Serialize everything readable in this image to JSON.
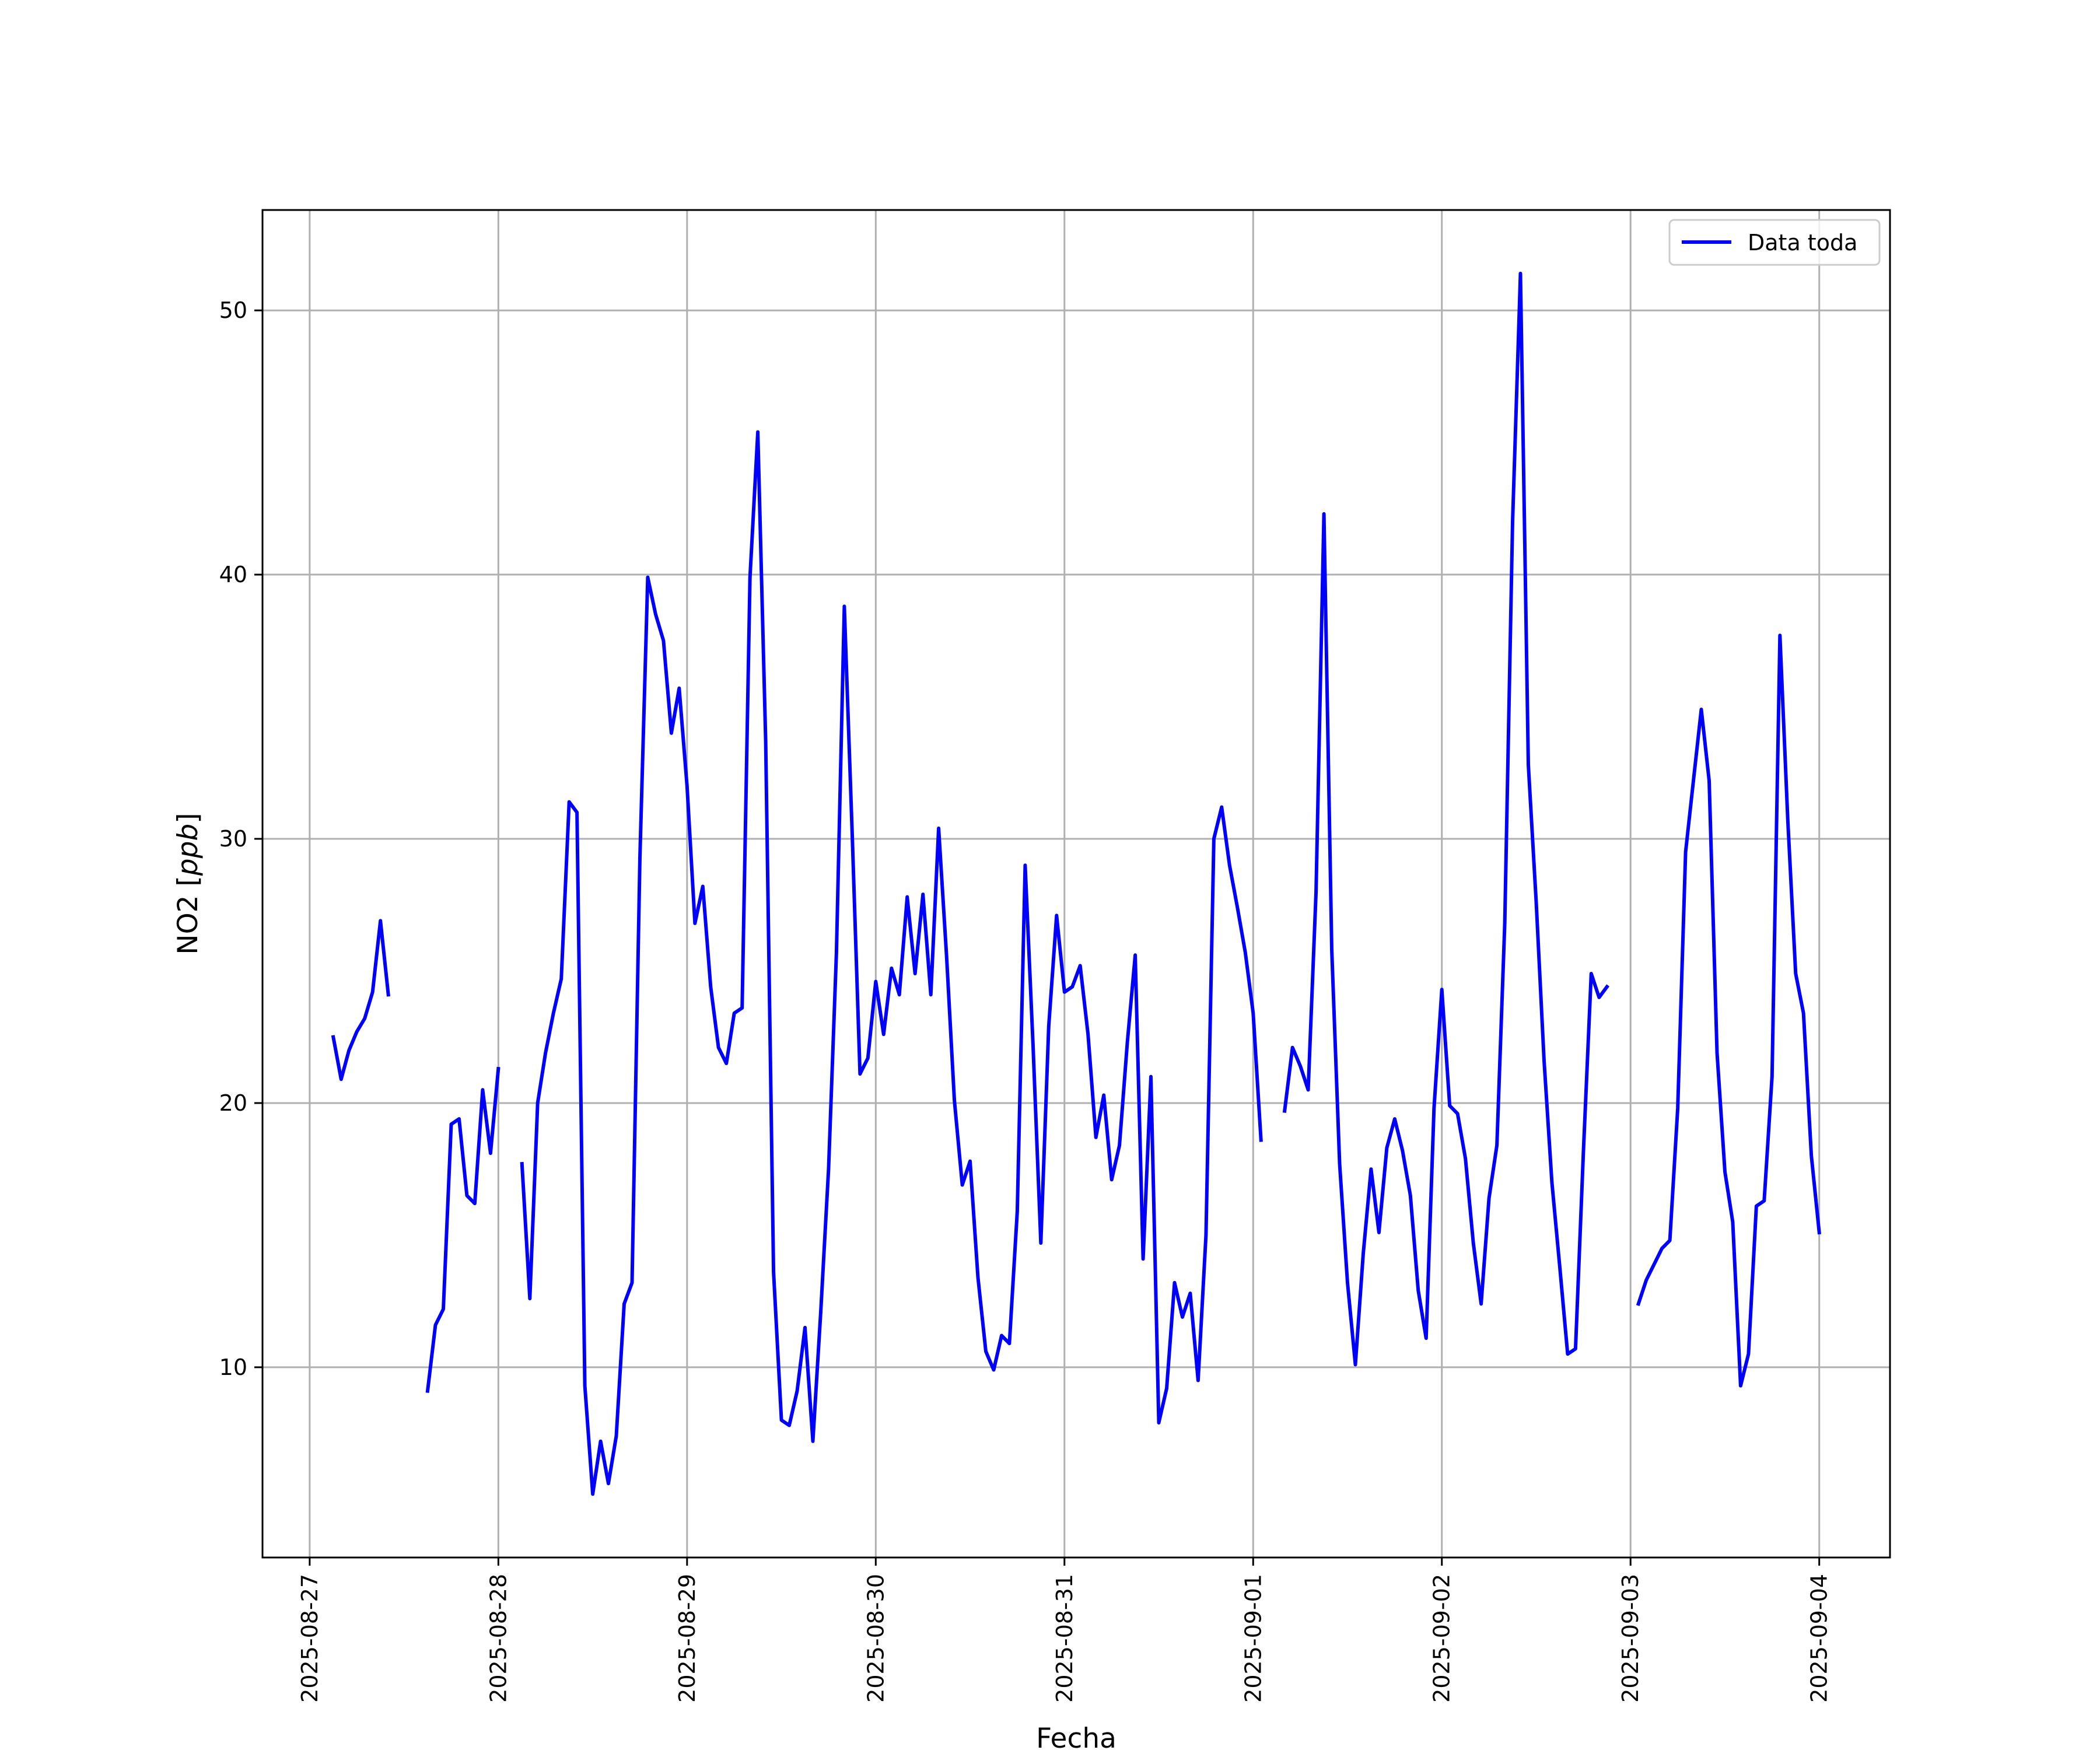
{
  "chart_data": {
    "type": "line",
    "title": "",
    "xlabel": "Fecha",
    "ylabel": "NO2 [ppb]",
    "ylabel_plain": "NO2 [",
    "ylabel_italic": "ppb",
    "ylabel_close": "]",
    "xlim": [
      "2025-08-26 18:00",
      "2025-09-04 09:00"
    ],
    "ylim": [
      2.8,
      53.8
    ],
    "x_ticks": [
      "2025-08-27",
      "2025-08-28",
      "2025-08-29",
      "2025-08-30",
      "2025-08-31",
      "2025-09-01",
      "2025-09-02",
      "2025-09-03",
      "2025-09-04"
    ],
    "y_ticks": [
      10,
      20,
      30,
      40,
      50
    ],
    "grid": true,
    "legend_position": "top-right",
    "series": [
      {
        "name": "Data toda",
        "color": "#0000ff",
        "segments": [
          [
            [
              "2025-08-27 03:00",
              22.5
            ],
            [
              "2025-08-27 04:00",
              20.9
            ],
            [
              "2025-08-27 05:00",
              22.0
            ],
            [
              "2025-08-27 06:00",
              22.7
            ],
            [
              "2025-08-27 07:00",
              23.2
            ],
            [
              "2025-08-27 08:00",
              24.2
            ],
            [
              "2025-08-27 09:00",
              26.9
            ],
            [
              "2025-08-27 10:00",
              24.1
            ]
          ],
          [
            [
              "2025-08-27 15:00",
              9.1
            ],
            [
              "2025-08-27 16:00",
              11.6
            ],
            [
              "2025-08-27 17:00",
              12.2
            ],
            [
              "2025-08-27 18:00",
              19.2
            ],
            [
              "2025-08-27 19:00",
              19.4
            ],
            [
              "2025-08-27 20:00",
              16.5
            ],
            [
              "2025-08-27 21:00",
              16.2
            ],
            [
              "2025-08-27 22:00",
              20.5
            ],
            [
              "2025-08-27 23:00",
              18.1
            ],
            [
              "2025-08-28 00:00",
              21.3
            ]
          ],
          [
            [
              "2025-08-28 03:00",
              17.7
            ],
            [
              "2025-08-28 04:00",
              12.6
            ],
            [
              "2025-08-28 05:00",
              20.0
            ],
            [
              "2025-08-28 06:00",
              21.9
            ],
            [
              "2025-08-28 07:00",
              23.4
            ],
            [
              "2025-08-28 08:00",
              24.7
            ],
            [
              "2025-08-28 09:00",
              31.4
            ],
            [
              "2025-08-28 10:00",
              31.0
            ],
            [
              "2025-08-28 11:00",
              9.3
            ],
            [
              "2025-08-28 12:00",
              5.2
            ],
            [
              "2025-08-28 13:00",
              7.2
            ],
            [
              "2025-08-28 14:00",
              5.6
            ],
            [
              "2025-08-28 15:00",
              7.4
            ],
            [
              "2025-08-28 16:00",
              12.4
            ],
            [
              "2025-08-28 17:00",
              13.2
            ],
            [
              "2025-08-28 18:00",
              29.3
            ],
            [
              "2025-08-28 19:00",
              39.9
            ],
            [
              "2025-08-28 20:00",
              38.5
            ],
            [
              "2025-08-28 21:00",
              37.5
            ],
            [
              "2025-08-28 22:00",
              34.0
            ],
            [
              "2025-08-28 23:00",
              35.7
            ],
            [
              "2025-08-29 00:00",
              32.0
            ],
            [
              "2025-08-29 01:00",
              26.8
            ],
            [
              "2025-08-29 02:00",
              28.2
            ],
            [
              "2025-08-29 03:00",
              24.4
            ],
            [
              "2025-08-29 04:00",
              22.1
            ],
            [
              "2025-08-29 05:00",
              21.5
            ],
            [
              "2025-08-29 06:00",
              23.4
            ],
            [
              "2025-08-29 07:00",
              23.6
            ],
            [
              "2025-08-29 08:00",
              39.9
            ],
            [
              "2025-08-29 09:00",
              45.4
            ],
            [
              "2025-08-29 10:00",
              33.7
            ],
            [
              "2025-08-29 11:00",
              13.6
            ],
            [
              "2025-08-29 12:00",
              8.0
            ],
            [
              "2025-08-29 13:00",
              7.8
            ],
            [
              "2025-08-29 14:00",
              9.1
            ],
            [
              "2025-08-29 15:00",
              11.5
            ],
            [
              "2025-08-29 16:00",
              7.2
            ],
            [
              "2025-08-29 17:00",
              12.1
            ],
            [
              "2025-08-29 18:00",
              17.5
            ],
            [
              "2025-08-29 19:00",
              25.7
            ],
            [
              "2025-08-29 20:00",
              38.8
            ],
            [
              "2025-08-29 21:00",
              30.2
            ],
            [
              "2025-08-29 22:00",
              21.1
            ],
            [
              "2025-08-29 23:00",
              21.7
            ],
            [
              "2025-08-30 00:00",
              24.6
            ],
            [
              "2025-08-30 01:00",
              22.6
            ],
            [
              "2025-08-30 02:00",
              25.1
            ],
            [
              "2025-08-30 03:00",
              24.1
            ],
            [
              "2025-08-30 04:00",
              27.8
            ],
            [
              "2025-08-30 05:00",
              24.9
            ],
            [
              "2025-08-30 06:00",
              27.9
            ],
            [
              "2025-08-30 07:00",
              24.1
            ],
            [
              "2025-08-30 08:00",
              30.4
            ],
            [
              "2025-08-30 09:00",
              25.6
            ],
            [
              "2025-08-30 10:00",
              20.1
            ],
            [
              "2025-08-30 11:00",
              16.9
            ],
            [
              "2025-08-30 12:00",
              17.8
            ],
            [
              "2025-08-30 13:00",
              13.4
            ],
            [
              "2025-08-30 14:00",
              10.6
            ],
            [
              "2025-08-30 15:00",
              9.9
            ],
            [
              "2025-08-30 16:00",
              11.2
            ],
            [
              "2025-08-30 17:00",
              10.9
            ],
            [
              "2025-08-30 18:00",
              15.9
            ],
            [
              "2025-08-30 19:00",
              29.0
            ],
            [
              "2025-08-30 20:00",
              22.2
            ],
            [
              "2025-08-30 21:00",
              14.7
            ],
            [
              "2025-08-30 22:00",
              22.9
            ],
            [
              "2025-08-30 23:00",
              27.1
            ],
            [
              "2025-08-31 00:00",
              24.2
            ],
            [
              "2025-08-31 01:00",
              24.4
            ],
            [
              "2025-08-31 02:00",
              25.2
            ],
            [
              "2025-08-31 03:00",
              22.6
            ],
            [
              "2025-08-31 04:00",
              18.7
            ],
            [
              "2025-08-31 05:00",
              20.3
            ],
            [
              "2025-08-31 06:00",
              17.1
            ],
            [
              "2025-08-31 07:00",
              18.4
            ],
            [
              "2025-08-31 08:00",
              22.3
            ],
            [
              "2025-08-31 09:00",
              25.6
            ],
            [
              "2025-08-31 10:00",
              14.1
            ],
            [
              "2025-08-31 11:00",
              21.0
            ],
            [
              "2025-08-31 12:00",
              7.9
            ],
            [
              "2025-08-31 13:00",
              9.2
            ],
            [
              "2025-08-31 14:00",
              13.2
            ],
            [
              "2025-08-31 15:00",
              11.9
            ],
            [
              "2025-08-31 16:00",
              12.8
            ],
            [
              "2025-08-31 17:00",
              9.5
            ],
            [
              "2025-08-31 18:00",
              15.0
            ],
            [
              "2025-08-31 19:00",
              30.0
            ],
            [
              "2025-08-31 20:00",
              31.2
            ],
            [
              "2025-08-31 21:00",
              29.0
            ],
            [
              "2025-08-31 22:00",
              27.4
            ],
            [
              "2025-08-31 23:00",
              25.7
            ],
            [
              "2025-09-01 00:00",
              23.4
            ],
            [
              "2025-09-01 01:00",
              18.6
            ]
          ],
          [
            [
              "2025-09-01 04:00",
              19.7
            ],
            [
              "2025-09-01 05:00",
              22.1
            ],
            [
              "2025-09-01 06:00",
              21.4
            ],
            [
              "2025-09-01 07:00",
              20.5
            ],
            [
              "2025-09-01 08:00",
              28.0
            ],
            [
              "2025-09-01 09:00",
              42.3
            ],
            [
              "2025-09-01 10:00",
              25.8
            ],
            [
              "2025-09-01 11:00",
              17.7
            ],
            [
              "2025-09-01 12:00",
              13.2
            ],
            [
              "2025-09-01 13:00",
              10.1
            ],
            [
              "2025-09-01 14:00",
              14.3
            ],
            [
              "2025-09-01 15:00",
              17.5
            ],
            [
              "2025-09-01 16:00",
              15.1
            ],
            [
              "2025-09-01 17:00",
              18.3
            ],
            [
              "2025-09-01 18:00",
              19.4
            ],
            [
              "2025-09-01 19:00",
              18.2
            ],
            [
              "2025-09-01 20:00",
              16.5
            ],
            [
              "2025-09-01 21:00",
              12.9
            ],
            [
              "2025-09-01 22:00",
              11.1
            ],
            [
              "2025-09-01 23:00",
              19.8
            ],
            [
              "2025-09-02 00:00",
              24.3
            ],
            [
              "2025-09-02 01:00",
              19.9
            ],
            [
              "2025-09-02 02:00",
              19.6
            ],
            [
              "2025-09-02 03:00",
              17.9
            ],
            [
              "2025-09-02 04:00",
              14.7
            ],
            [
              "2025-09-02 05:00",
              12.4
            ],
            [
              "2025-09-02 06:00",
              16.4
            ],
            [
              "2025-09-02 07:00",
              18.4
            ],
            [
              "2025-09-02 08:00",
              26.8
            ],
            [
              "2025-09-02 09:00",
              42.0
            ],
            [
              "2025-09-02 10:00",
              51.4
            ],
            [
              "2025-09-02 11:00",
              32.8
            ],
            [
              "2025-09-02 12:00",
              27.6
            ],
            [
              "2025-09-02 13:00",
              21.6
            ],
            [
              "2025-09-02 14:00",
              17.0
            ],
            [
              "2025-09-02 15:00",
              13.8
            ],
            [
              "2025-09-02 16:00",
              10.5
            ],
            [
              "2025-09-02 17:00",
              10.7
            ],
            [
              "2025-09-02 18:00",
              18.1
            ],
            [
              "2025-09-02 19:00",
              24.9
            ],
            [
              "2025-09-02 20:00",
              24.0
            ],
            [
              "2025-09-02 21:00",
              24.4
            ]
          ],
          [
            [
              "2025-09-03 01:00",
              12.4
            ],
            [
              "2025-09-03 02:00",
              13.3
            ],
            [
              "2025-09-03 03:00",
              13.9
            ],
            [
              "2025-09-03 04:00",
              14.5
            ],
            [
              "2025-09-03 05:00",
              14.8
            ],
            [
              "2025-09-03 06:00",
              19.8
            ],
            [
              "2025-09-03 07:00",
              29.5
            ],
            [
              "2025-09-03 08:00",
              32.2
            ],
            [
              "2025-09-03 09:00",
              34.9
            ],
            [
              "2025-09-03 10:00",
              32.2
            ],
            [
              "2025-09-03 11:00",
              21.9
            ],
            [
              "2025-09-03 12:00",
              17.4
            ],
            [
              "2025-09-03 13:00",
              15.5
            ],
            [
              "2025-09-03 14:00",
              9.3
            ],
            [
              "2025-09-03 15:00",
              10.5
            ],
            [
              "2025-09-03 16:00",
              16.1
            ],
            [
              "2025-09-03 17:00",
              16.3
            ],
            [
              "2025-09-03 18:00",
              21.0
            ],
            [
              "2025-09-03 19:00",
              37.7
            ],
            [
              "2025-09-03 20:00",
              30.7
            ],
            [
              "2025-09-03 21:00",
              24.9
            ],
            [
              "2025-09-03 22:00",
              23.4
            ],
            [
              "2025-09-03 23:00",
              18.0
            ],
            [
              "2025-09-04 00:00",
              15.1
            ]
          ]
        ]
      }
    ]
  }
}
